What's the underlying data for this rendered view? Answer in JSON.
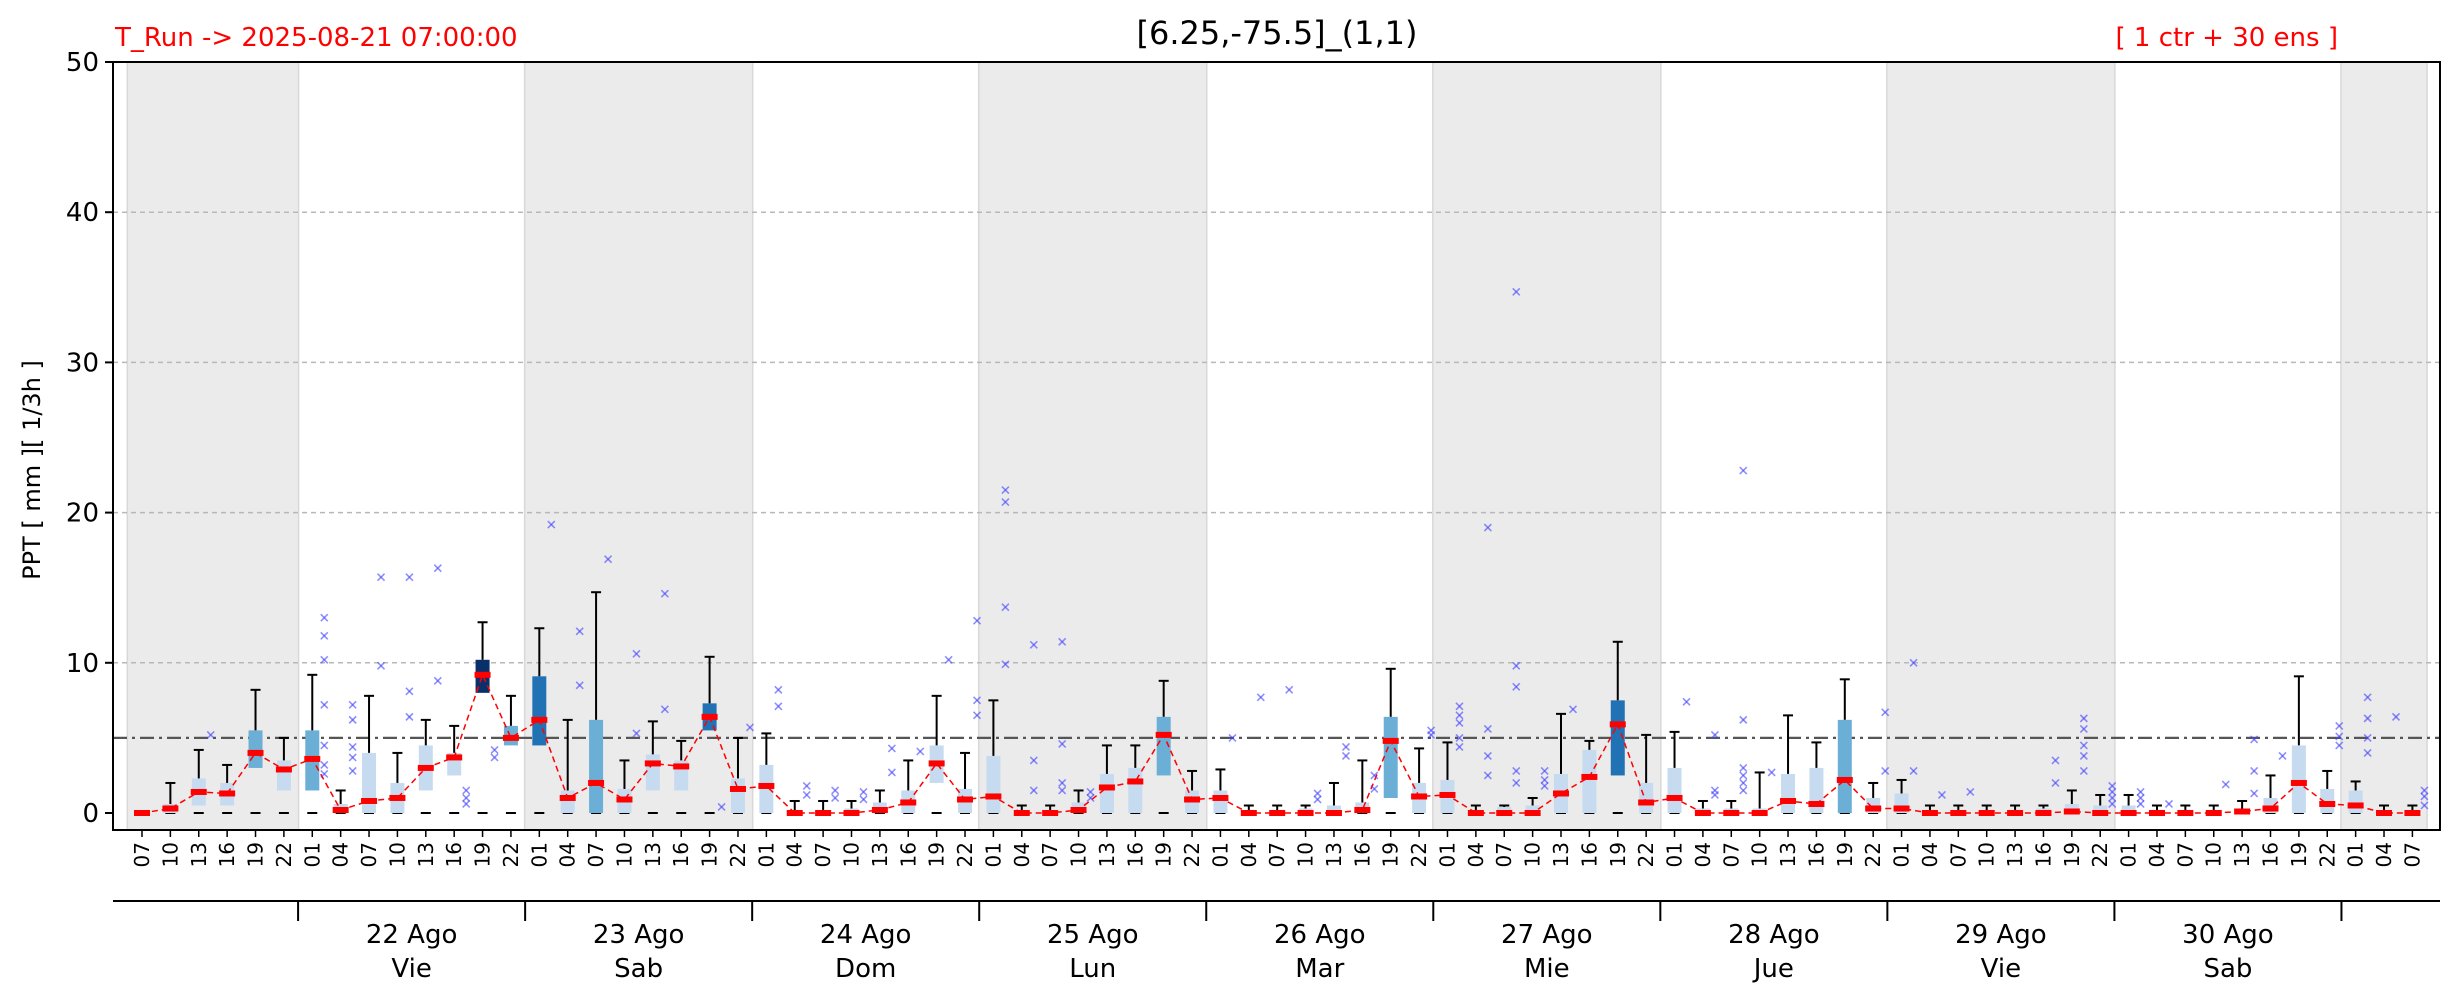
{
  "chart_data": {
    "type": "box",
    "title": "[6.25,-75.5]_(1,1)",
    "run_label": "T_Run -> 2025-08-21  07:00:00",
    "ensemble_label": "[ 1 ctr + 30 ens ]",
    "ylabel": "PPT  [ mm ][ 1/3h ]",
    "ylim": [
      0,
      50
    ],
    "yticks": [
      0,
      10,
      20,
      30,
      40,
      50
    ],
    "threshold": 5,
    "grid": "horizontal dashed",
    "colors": {
      "median": "#ff0000",
      "line": "#ff0000",
      "outlier": "#4444ff",
      "shade": "#ebebeb",
      "box_low": "#c6dbef",
      "box_mid": "#6baed6",
      "box_hi": "#2171b5",
      "box_top": "#08306b",
      "threshold": "#555555"
    },
    "hours": [
      "07",
      "10",
      "13",
      "16",
      "19",
      "22",
      "01",
      "04",
      "07",
      "10",
      "13",
      "16",
      "19",
      "22",
      "01",
      "04",
      "07",
      "10",
      "13",
      "16",
      "19",
      "22",
      "01",
      "04",
      "07",
      "10",
      "13",
      "16",
      "19",
      "22",
      "01",
      "04",
      "07",
      "10",
      "13",
      "16",
      "19",
      "22",
      "01",
      "04",
      "07",
      "10",
      "13",
      "16",
      "19",
      "22",
      "01",
      "04",
      "07",
      "10",
      "13",
      "16",
      "19",
      "22",
      "01",
      "04",
      "07",
      "10",
      "13",
      "16",
      "19",
      "22",
      "01",
      "04",
      "07",
      "10",
      "13",
      "16",
      "19",
      "22",
      "01",
      "04",
      "07",
      "10",
      "13",
      "16",
      "19",
      "22",
      "01",
      "04",
      "07"
    ],
    "days": [
      {
        "date": "22 Ago",
        "weekday": "Vie"
      },
      {
        "date": "23 Ago",
        "weekday": "Sab"
      },
      {
        "date": "24 Ago",
        "weekday": "Dom"
      },
      {
        "date": "25 Ago",
        "weekday": "Lun"
      },
      {
        "date": "26 Ago",
        "weekday": "Mar"
      },
      {
        "date": "27 Ago",
        "weekday": "Mie"
      },
      {
        "date": "28 Ago",
        "weekday": "Jue"
      },
      {
        "date": "29 Ago",
        "weekday": "Vie"
      },
      {
        "date": "30 Ago",
        "weekday": "Sab"
      }
    ],
    "day_start_indices": [
      6,
      14,
      22,
      30,
      38,
      46,
      54,
      62,
      70,
      78
    ],
    "night_shade_index_ranges": [
      [
        0,
        5
      ],
      [
        14,
        21
      ],
      [
        30,
        37
      ],
      [
        46,
        53
      ],
      [
        62,
        69
      ],
      [
        78,
        80
      ]
    ],
    "median": [
      0,
      0.3,
      1.4,
      1.3,
      4,
      2.9,
      3.6,
      0.2,
      0.8,
      1,
      3,
      3.7,
      9.2,
      5,
      6.2,
      1,
      2,
      0.9,
      3.3,
      3.1,
      6.4,
      1.6,
      1.8,
      0,
      0,
      0,
      0.2,
      0.7,
      3.3,
      0.9,
      1.1,
      0,
      0,
      0.2,
      1.7,
      2.1,
      5.2,
      0.9,
      1,
      0,
      0,
      0,
      0,
      0.2,
      4.8,
      1.1,
      1.2,
      0,
      0,
      0,
      1.3,
      2.4,
      5.9,
      0.7,
      1,
      0,
      0,
      0,
      0.8,
      0.6,
      2.2,
      0.3,
      0.3,
      0,
      0,
      0,
      0,
      0,
      0.1,
      0,
      0,
      0,
      0,
      0,
      0.1,
      0.3,
      2,
      0.6,
      0.5,
      0,
      0
    ],
    "q1": [
      0,
      0,
      0.5,
      0.5,
      3,
      1.5,
      1.5,
      0,
      0,
      0,
      1.5,
      2.5,
      8,
      4.5,
      4.5,
      0,
      0,
      0,
      1.5,
      1.5,
      5.5,
      0,
      0,
      0,
      0,
      0,
      0,
      0,
      2,
      0,
      0,
      0,
      0,
      0,
      0,
      0,
      2.5,
      0,
      0,
      0,
      0,
      0,
      0,
      0,
      1,
      0,
      0,
      0,
      0,
      0,
      0,
      0,
      2.5,
      0,
      0,
      0,
      0,
      0,
      0,
      0,
      0,
      0,
      0,
      0,
      0,
      0,
      0,
      0,
      0,
      0,
      0,
      0,
      0,
      0,
      0,
      0,
      0,
      0,
      0,
      0,
      0
    ],
    "q3": [
      0,
      0.6,
      2.3,
      2,
      5.5,
      3.5,
      5.5,
      0.6,
      4,
      2,
      4.5,
      4,
      10.2,
      5.8,
      9.1,
      1.5,
      6.2,
      1.6,
      3.9,
      3.5,
      7.3,
      2.3,
      3.2,
      0.2,
      0.2,
      0.3,
      0.7,
      1.5,
      4.5,
      1.6,
      3.8,
      0.2,
      0.2,
      0.7,
      2.6,
      3,
      6.4,
      1.5,
      1.5,
      0.2,
      0.2,
      0.3,
      0.5,
      0.7,
      6.4,
      2,
      2.2,
      0.2,
      0.4,
      0.5,
      2.6,
      4.2,
      7.5,
      2,
      3,
      0.3,
      0.3,
      0.3,
      2.6,
      3,
      6.2,
      1,
      1.3,
      0.2,
      0.2,
      0.2,
      0.2,
      0.3,
      0.6,
      0.5,
      0.5,
      0.2,
      0.2,
      0.2,
      0.3,
      1,
      4.5,
      1.6,
      1.5,
      0.2,
      0.2
    ],
    "whisker_hi": [
      0,
      2,
      4.2,
      3.2,
      8.2,
      5,
      9.2,
      1.5,
      7.8,
      4,
      6.2,
      5.8,
      12.7,
      7.8,
      12.3,
      6.2,
      14.7,
      3.5,
      6.1,
      4.8,
      10.4,
      5,
      5.3,
      0.8,
      0.8,
      0.8,
      1.5,
      3.5,
      7.8,
      4,
      7.5,
      0.5,
      0.5,
      1.5,
      4.5,
      4.5,
      8.8,
      2.8,
      2.9,
      0.5,
      0.5,
      0.5,
      2,
      3.5,
      9.6,
      4.3,
      4.7,
      0.5,
      0.5,
      1,
      6.6,
      4.8,
      11.4,
      5.2,
      5.4,
      0.8,
      0.8,
      2.7,
      6.5,
      4.7,
      8.9,
      2,
      2.2,
      0.5,
      0.5,
      0.5,
      0.5,
      0.5,
      1.5,
      1.2,
      1.2,
      0.5,
      0.5,
      0.5,
      0.8,
      2.5,
      9.1,
      2.8,
      2.1,
      0.5,
      0.5
    ],
    "outliers": [
      [],
      [],
      [
        5.2
      ],
      [],
      [],
      [],
      [
        13,
        11.8,
        10.2,
        7.2,
        4.5,
        3.2,
        2.6
      ],
      [
        7.2,
        6.2,
        4.4,
        3.7,
        2.8
      ],
      [
        15.7,
        9.8
      ],
      [
        15.7,
        8.1,
        6.4
      ],
      [
        16.3,
        8.8
      ],
      [
        1.5,
        1,
        0.6
      ],
      [
        4.2,
        3.7
      ],
      [],
      [
        19.2
      ],
      [
        12.1,
        8.5
      ],
      [
        16.9
      ],
      [
        10.6,
        5.3
      ],
      [
        14.6,
        6.9
      ],
      [],
      [
        0.4
      ],
      [
        5.7
      ],
      [
        8.2,
        7.1
      ],
      [
        1.8,
        1.2
      ],
      [
        1.5,
        1
      ],
      [
        1.4,
        0.9
      ],
      [
        4.3,
        2.7
      ],
      [
        4.1
      ],
      [
        10.2
      ],
      [
        12.8,
        7.5,
        6.5
      ],
      [
        21.5,
        20.7,
        13.7,
        9.9
      ],
      [
        11.2,
        3.5,
        1.5
      ],
      [
        11.4,
        4.6,
        2,
        1.5
      ],
      [
        1.4,
        1
      ],
      [],
      [],
      [],
      [],
      [
        5
      ],
      [
        7.7
      ],
      [
        8.2
      ],
      [
        1.3,
        0.9
      ],
      [
        4.4,
        3.8
      ],
      [
        2.5,
        1.6
      ],
      [],
      [
        5.5,
        5.2
      ],
      [
        7.1,
        6.5,
        6,
        5,
        4.4
      ],
      [
        19,
        5.6,
        3.8,
        2.5
      ],
      [
        34.7,
        9.8,
        8.4,
        2.8,
        2
      ],
      [
        2.8,
        2.2,
        1.8
      ],
      [
        6.9
      ],
      [],
      [],
      [],
      [
        7.4
      ],
      [
        5.2,
        1.5,
        1.2
      ],
      [
        22.8,
        6.2,
        3,
        2.5,
        2,
        1.5
      ],
      [
        2.7
      ],
      [],
      [],
      [],
      [
        6.7,
        2.8
      ],
      [
        10,
        2.8
      ],
      [
        1.2
      ],
      [
        1.4
      ],
      [],
      [],
      [
        3.5,
        2
      ],
      [
        6.3,
        5.6,
        4.5,
        3.8,
        2.8
      ],
      [
        1.8,
        1.4,
        1,
        0.6
      ],
      [
        1.4,
        1,
        0.6
      ],
      [
        0.6
      ],
      [],
      [
        1.9
      ],
      [
        4.9,
        2.8,
        1.3
      ],
      [
        3.8
      ],
      [],
      [
        5.8,
        5.1,
        4.5
      ],
      [
        7.7,
        6.3,
        5,
        4
      ],
      [
        6.4
      ],
      [
        1.5,
        1.1,
        0.5
      ]
    ]
  }
}
